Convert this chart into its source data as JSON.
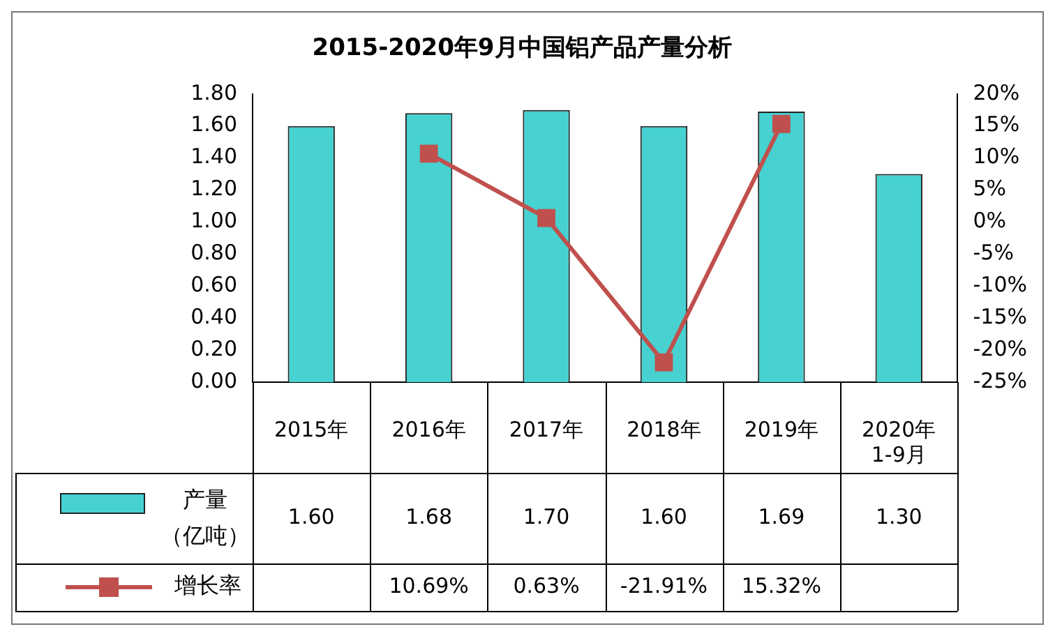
{
  "chart_data": {
    "type": "bar",
    "title": "2015-2020年9月中国铝产品产量分析",
    "categories": [
      "2015年",
      "2016年",
      "2017年",
      "2018年",
      "2019年",
      "2020年\n1-9月"
    ],
    "series": [
      {
        "name": "产量（亿吨）",
        "color": "#47d1d1",
        "values": [
          1.6,
          1.68,
          1.7,
          1.6,
          1.69,
          1.3
        ],
        "value_labels": [
          "1.60",
          "1.68",
          "1.70",
          "1.60",
          "1.69",
          "1.30"
        ]
      },
      {
        "name": "增长率",
        "type": "line",
        "axis": "y2",
        "color": "#c0504d",
        "marker": "square",
        "values": [
          null,
          10.69,
          0.63,
          -21.91,
          15.32,
          null
        ],
        "value_labels": [
          null,
          "10.69%",
          "0.63%",
          "-21.91%",
          "15.32%",
          null
        ]
      }
    ],
    "legend": "bottom left",
    "ylim": [
      0,
      1.8
    ],
    "yticks": [
      {
        "value": 0,
        "label": "0.00"
      },
      {
        "value": 0.2,
        "label": "0.20"
      },
      {
        "value": 0.4,
        "label": "0.40"
      },
      {
        "value": 0.6,
        "label": "0.60"
      },
      {
        "value": 0.8,
        "label": "0.80"
      },
      {
        "value": 1,
        "label": "1.00"
      },
      {
        "value": 1.2,
        "label": "1.20"
      },
      {
        "value": 1.4,
        "label": "1.40"
      },
      {
        "value": 1.6,
        "label": "1.60"
      },
      {
        "value": 1.8,
        "label": "1.80"
      }
    ],
    "y2lim": [
      -25,
      20
    ],
    "y2ticks": [
      {
        "value": -25,
        "label": "-25%"
      },
      {
        "value": -20,
        "label": "-20%"
      },
      {
        "value": -15,
        "label": "-15%"
      },
      {
        "value": -10,
        "label": "-10%"
      },
      {
        "value": -5,
        "label": "-5%"
      },
      {
        "value": 0,
        "label": "0%"
      },
      {
        "value": 5,
        "label": "5%"
      },
      {
        "value": 10,
        "label": "10%"
      },
      {
        "value": 15,
        "label": "15%"
      },
      {
        "value": 20,
        "label": "20%"
      }
    ]
  }
}
